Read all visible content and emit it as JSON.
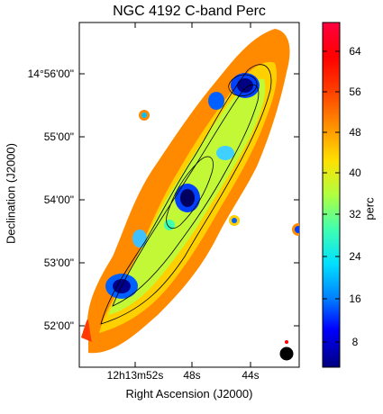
{
  "figure": {
    "title": "NGC 4192    C-band    Perc",
    "xlabel": "Right Ascension (J2000)",
    "ylabel": "Declination (J2000)",
    "x_ticks": [
      "12h13m52s",
      "48s",
      "44s"
    ],
    "y_ticks": [
      "14°56'00\"",
      "55'00\"",
      "54'00\"",
      "53'00\"",
      "52'00\""
    ],
    "colorbar": {
      "label": "perc",
      "ticks": [
        "64",
        "56",
        "48",
        "40",
        "32",
        "24",
        "16",
        "8"
      ],
      "range": [
        2,
        70
      ],
      "colormap": "jet"
    },
    "colors": {
      "map_background": "#ffffff",
      "contour": "#000000",
      "beam": "#000000"
    }
  }
}
